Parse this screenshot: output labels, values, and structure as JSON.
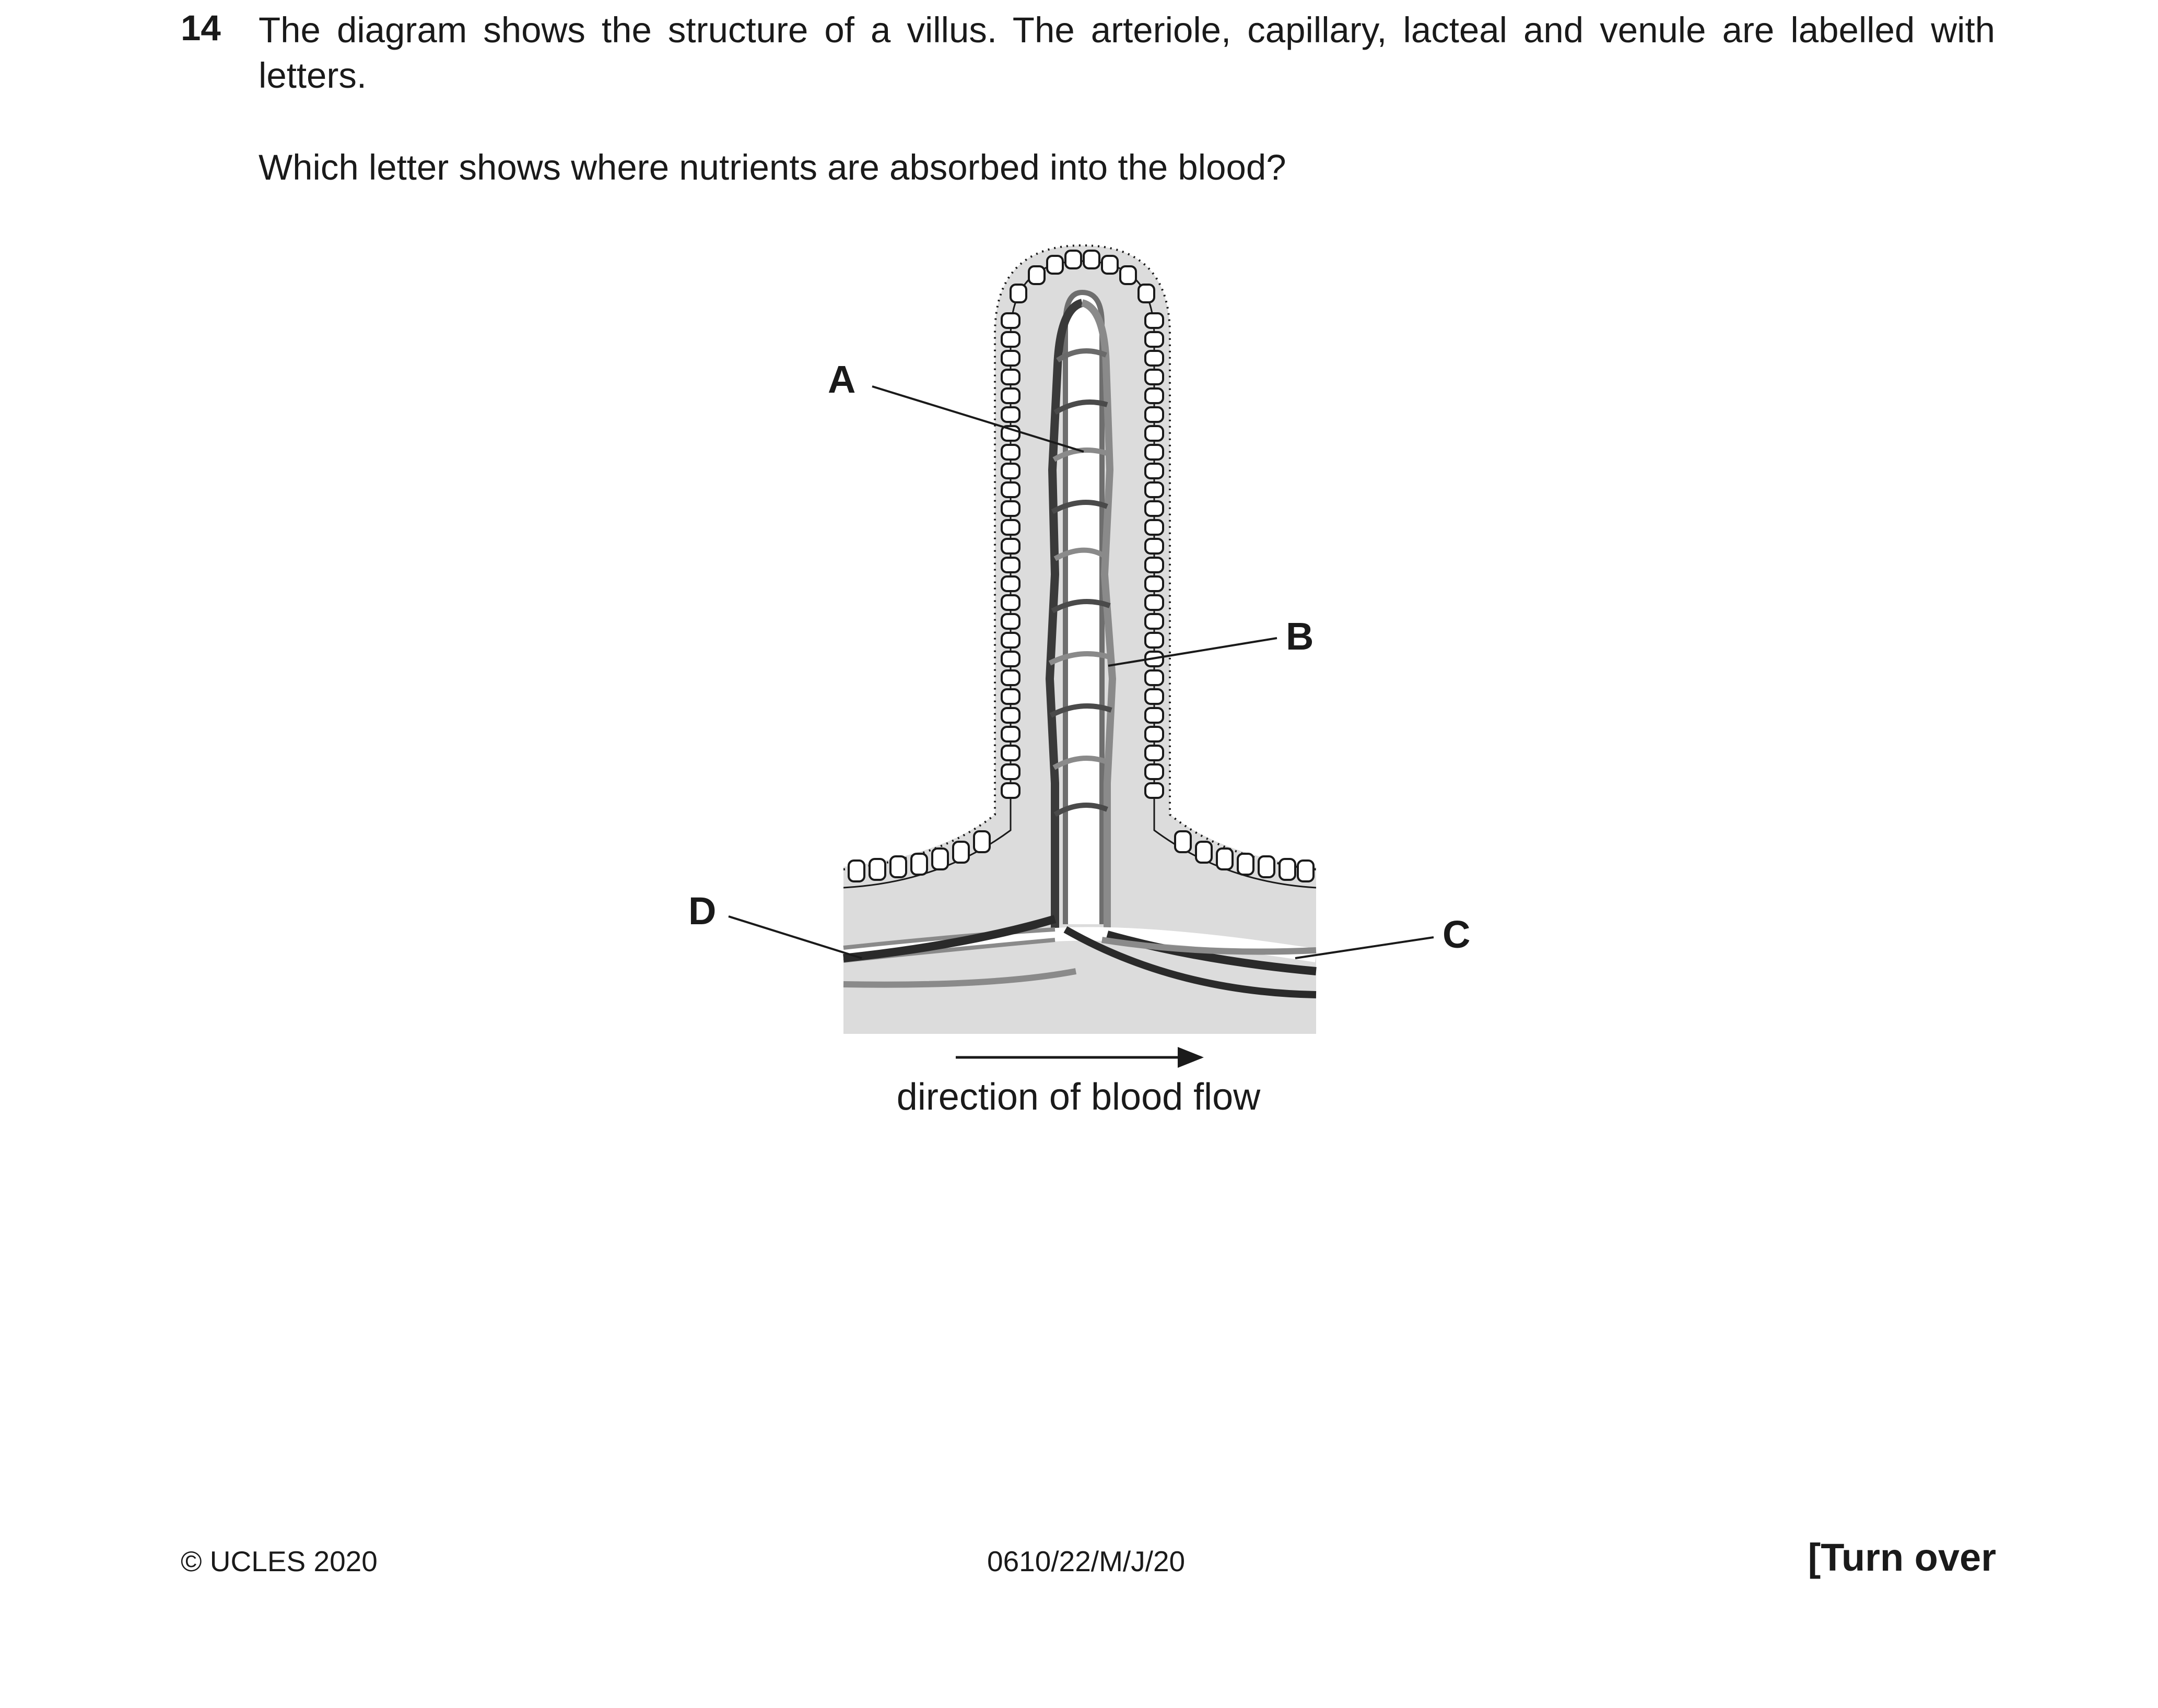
{
  "question": {
    "number": "14",
    "intro": "The diagram shows the structure of a villus. The arteriole, capillary, lacteal and venule are labelled with letters.",
    "prompt": "Which letter shows where nutrients are absorbed into the blood?"
  },
  "diagram": {
    "labels": [
      "A",
      "B",
      "C",
      "D"
    ],
    "caption": "direction of blood flow"
  },
  "footer": {
    "copyright": "© UCLES 2020",
    "code": "0610/22/M/J/20",
    "turn_over": "[Turn over"
  }
}
